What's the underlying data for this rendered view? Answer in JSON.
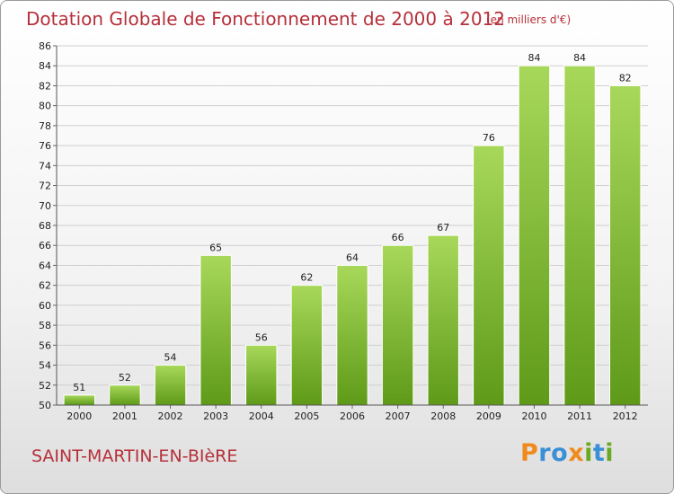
{
  "title": "Dotation Globale de Fonctionnement de 2000 à 2012",
  "subtitle": "(en milliers d'€)",
  "commune": "SAINT-MARTIN-EN-BIèRE",
  "logo": {
    "letters": [
      "P",
      "r",
      "o",
      "x",
      "i",
      "t",
      "i"
    ],
    "colors": [
      "#f08a1c",
      "#3a8fd6",
      "#3a8fd6",
      "#f08a1c",
      "#6aaa22",
      "#3a8fd6",
      "#6aaa22"
    ]
  },
  "colors": {
    "title": "#b5303a",
    "bar_top": "#a8d85a",
    "bar_bottom": "#5e9a18"
  },
  "chart_data": {
    "type": "bar",
    "categories": [
      "2000",
      "2001",
      "2002",
      "2003",
      "2004",
      "2005",
      "2006",
      "2007",
      "2008",
      "2009",
      "2010",
      "2011",
      "2012"
    ],
    "values": [
      51,
      52,
      54,
      65,
      56,
      62,
      64,
      66,
      67,
      76,
      84,
      84,
      82
    ],
    "data_labels": [
      "51",
      "52",
      "54",
      "65",
      "56",
      "62",
      "64",
      "66",
      "67",
      "76",
      "84",
      "84",
      "82"
    ],
    "ylim": [
      50,
      86
    ],
    "yticks": [
      50,
      52,
      54,
      56,
      58,
      60,
      62,
      64,
      66,
      68,
      70,
      72,
      74,
      76,
      78,
      80,
      82,
      84,
      86
    ],
    "grid": true
  }
}
